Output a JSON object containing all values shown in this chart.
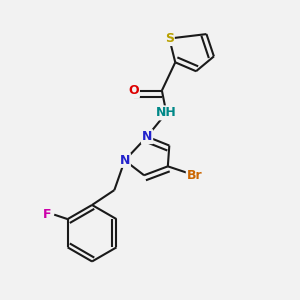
{
  "background_color": "#f2f2f2",
  "bond_color": "#1a1a1a",
  "bond_width": 1.5,
  "fig_width": 3.0,
  "fig_height": 3.0,
  "dpi": 100,
  "colors": {
    "S": "#b8a000",
    "O": "#dd0000",
    "NH": "#008888",
    "N": "#2222cc",
    "Br": "#cc6600",
    "F": "#cc00aa"
  }
}
